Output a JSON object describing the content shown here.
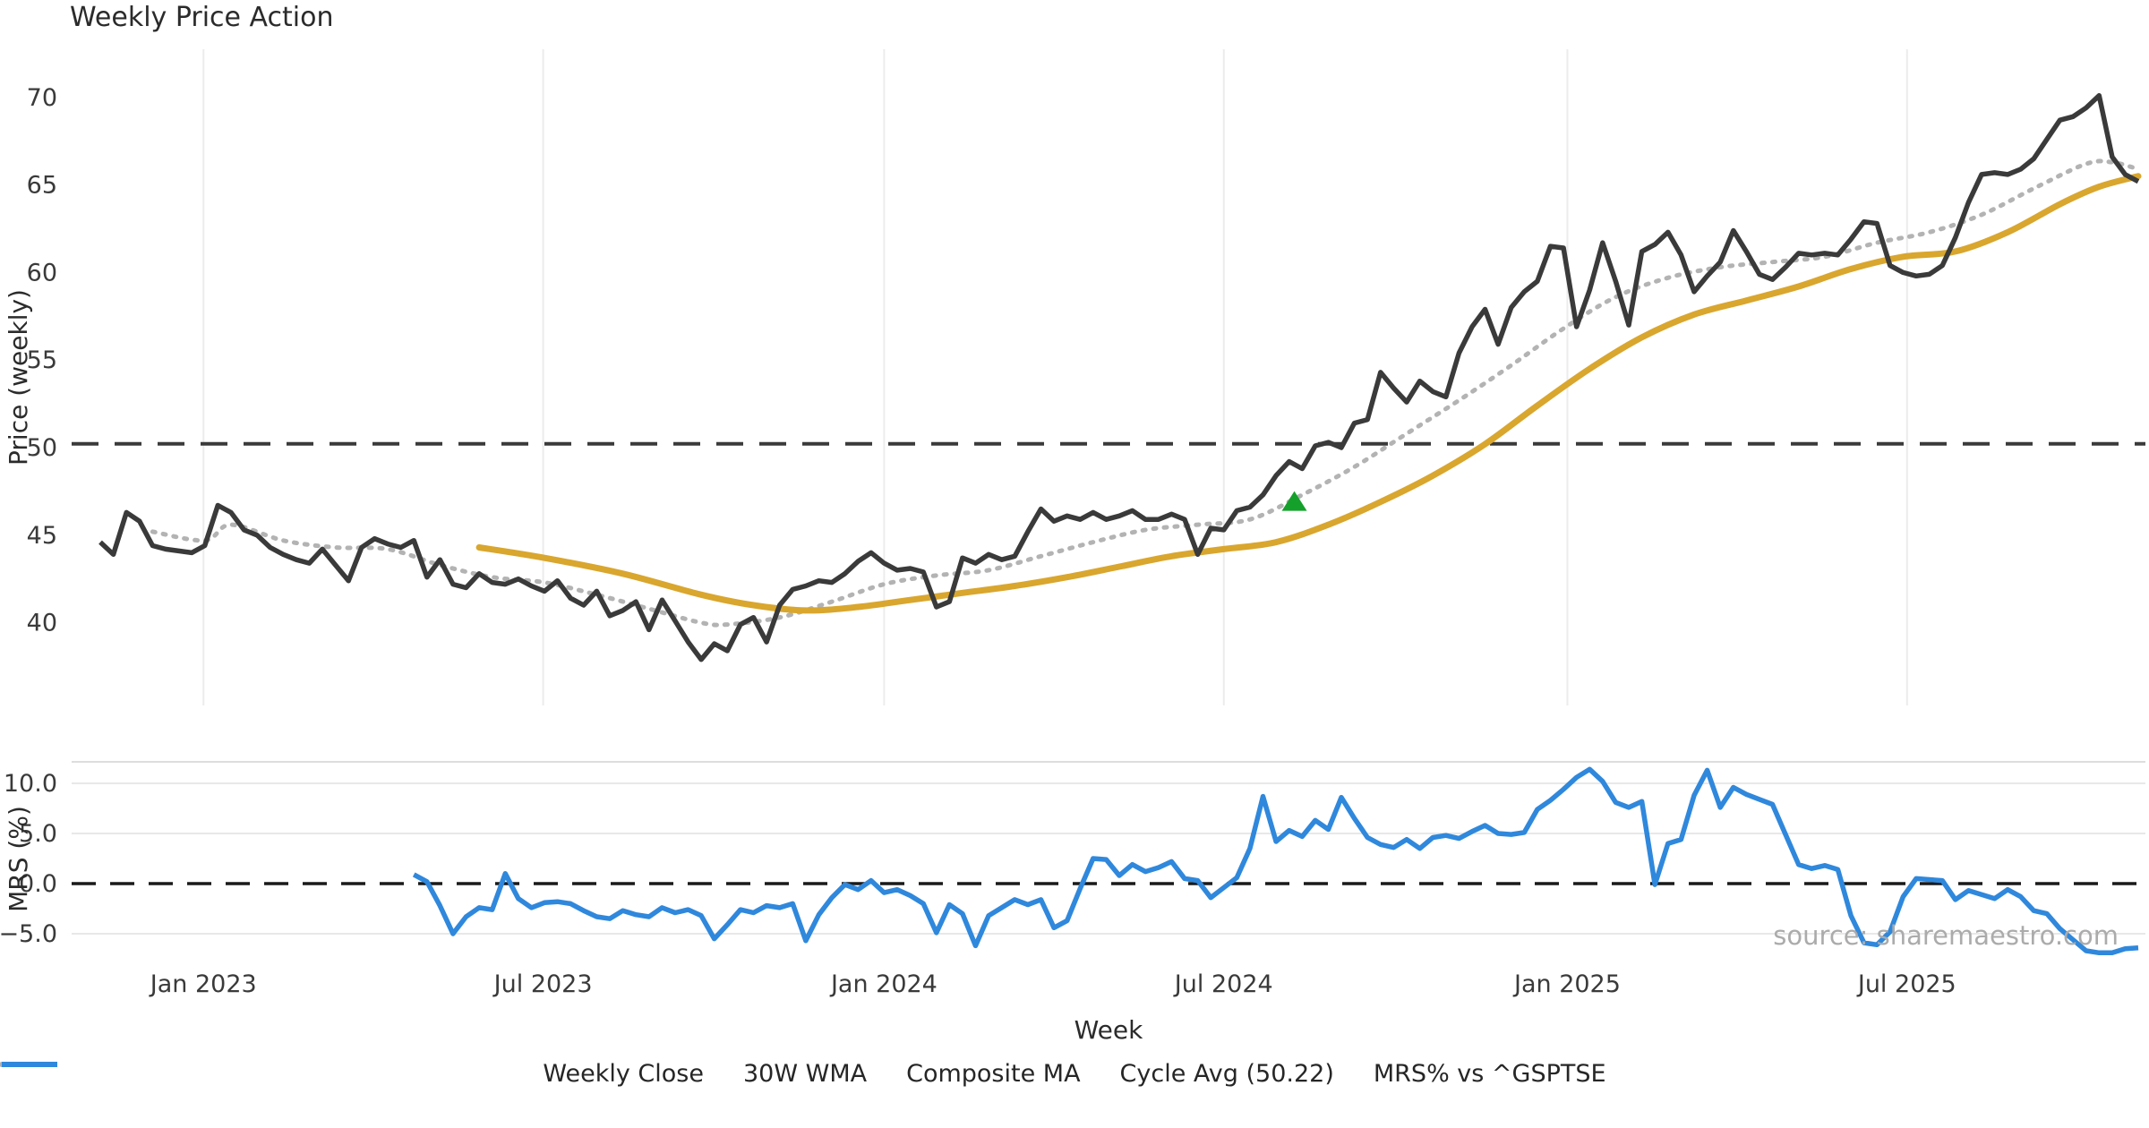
{
  "figure": {
    "title": "Weekly Price Action",
    "source_note": "source: sharemaestro.com",
    "colors": {
      "close": "#3a3a3a",
      "wma": "#d9a62e",
      "composite": "#b3b3b3",
      "cycle_avg": "#3a3a3a",
      "mrs": "#2f88dc",
      "signal_marker": "#15a02c",
      "grid": "#ececec",
      "grid_h": "#e8e8e8",
      "panel_edge": "#dddddd",
      "zero_line": "#1a1a1a",
      "text": "#2b2b2b",
      "tick_text": "#3a3a3a",
      "source_text": "#ababab",
      "background": "#ffffff"
    },
    "legend": [
      {
        "label": "Weekly Close",
        "style": "solid",
        "color": "#3a3a3a"
      },
      {
        "label": "30W WMA",
        "style": "solid",
        "color": "#d9a62e"
      },
      {
        "label": "Composite MA",
        "style": "dotted",
        "color": "#b3b3b3"
      },
      {
        "label": "Cycle Avg (50.22)",
        "style": "dashed",
        "color": "#3a3a3a"
      },
      {
        "label": "MRS% vs ^GSPTSE",
        "style": "solid",
        "color": "#2f88dc"
      }
    ],
    "x_axis": {
      "label": "Week",
      "ticks": [
        {
          "label": "Jan 2023",
          "week": 7.9
        },
        {
          "label": "Jul 2023",
          "week": 33.9
        },
        {
          "label": "Jan 2024",
          "week": 60.0
        },
        {
          "label": "Jul 2024",
          "week": 86.0
        },
        {
          "label": "Jan 2025",
          "week": 112.3
        },
        {
          "label": "Jul 2025",
          "week": 138.3
        }
      ]
    }
  },
  "chart_data": [
    {
      "type": "line",
      "title": "Weekly Price Action",
      "xlabel": "Week",
      "ylabel": "Price (weekly)",
      "ylim": [
        35.3,
        72.7
      ],
      "yticks": [
        70,
        65,
        60,
        55,
        50,
        45,
        40
      ],
      "ytick_labels": [
        "70",
        "65",
        "60",
        "55",
        "50",
        "45",
        "40"
      ],
      "grid": "vertical-only",
      "legend_position": "below-figure",
      "cycle_avg_value": 50.22,
      "series": [
        {
          "name": "Weekly Close",
          "start_week": 0,
          "values": [
            44.6,
            43.9,
            46.3,
            45.8,
            44.4,
            44.2,
            44.1,
            44.0,
            44.4,
            46.7,
            46.3,
            45.3,
            45.0,
            44.3,
            43.9,
            43.6,
            43.4,
            44.2,
            43.3,
            42.4,
            44.3,
            44.8,
            44.5,
            44.3,
            44.7,
            42.6,
            43.6,
            42.2,
            42.0,
            42.8,
            42.3,
            42.2,
            42.5,
            42.1,
            41.8,
            42.4,
            41.4,
            41.0,
            41.8,
            40.4,
            40.7,
            41.2,
            39.6,
            41.3,
            40.1,
            38.9,
            37.9,
            38.8,
            38.4,
            39.9,
            40.3,
            38.9,
            41.0,
            41.9,
            42.1,
            42.4,
            42.3,
            42.8,
            43.5,
            44.0,
            43.4,
            43.0,
            43.1,
            42.9,
            40.9,
            41.2,
            43.7,
            43.4,
            43.9,
            43.6,
            43.8,
            45.2,
            46.5,
            45.8,
            46.1,
            45.9,
            46.3,
            45.9,
            46.1,
            46.4,
            45.9,
            45.9,
            46.2,
            45.9,
            43.9,
            45.4,
            45.3,
            46.4,
            46.6,
            47.3,
            48.4,
            49.2,
            48.8,
            50.1,
            50.3,
            50.0,
            51.4,
            51.6,
            54.3,
            53.4,
            52.6,
            53.8,
            53.2,
            52.9,
            55.4,
            56.9,
            57.9,
            55.9,
            58.0,
            58.9,
            59.5,
            61.5,
            61.4,
            56.9,
            59.0,
            61.7,
            59.5,
            57.0,
            61.2,
            61.6,
            62.3,
            61.0,
            58.9,
            59.8,
            60.6,
            62.4,
            61.2,
            59.9,
            59.6,
            60.3,
            61.1,
            61.0,
            61.1,
            61.0,
            61.9,
            62.9,
            62.8,
            60.4,
            60.0,
            59.8,
            59.9,
            60.4,
            62.0,
            64.0,
            65.6,
            65.7,
            65.6,
            65.9,
            66.5,
            67.6,
            68.7,
            68.9,
            69.4,
            70.1,
            66.6,
            65.6,
            65.2
          ]
        },
        {
          "name": "30W WMA",
          "points": [
            [
              29,
              44.3
            ],
            [
              34,
              43.7
            ],
            [
              40,
              42.8
            ],
            [
              46,
              41.6
            ],
            [
              50,
              41.0
            ],
            [
              54,
              40.7
            ],
            [
              58,
              40.9
            ],
            [
              62,
              41.3
            ],
            [
              66,
              41.7
            ],
            [
              70,
              42.1
            ],
            [
              74,
              42.6
            ],
            [
              78,
              43.2
            ],
            [
              82,
              43.8
            ],
            [
              86,
              44.2
            ],
            [
              90,
              44.6
            ],
            [
              94,
              45.6
            ],
            [
              98,
              46.9
            ],
            [
              102,
              48.4
            ],
            [
              106,
              50.2
            ],
            [
              110,
              52.4
            ],
            [
              114,
              54.5
            ],
            [
              118,
              56.3
            ],
            [
              122,
              57.6
            ],
            [
              126,
              58.4
            ],
            [
              130,
              59.2
            ],
            [
              134,
              60.2
            ],
            [
              138,
              60.9
            ],
            [
              142,
              61.2
            ],
            [
              146,
              62.3
            ],
            [
              150,
              63.9
            ],
            [
              153,
              64.9
            ],
            [
              156,
              65.5
            ]
          ]
        },
        {
          "name": "Composite MA",
          "points": [
            [
              4,
              45.2
            ],
            [
              8,
              44.7
            ],
            [
              10,
              45.6
            ],
            [
              14,
              44.7
            ],
            [
              18,
              44.3
            ],
            [
              22,
              44.2
            ],
            [
              26,
              43.3
            ],
            [
              30,
              42.6
            ],
            [
              34,
              42.3
            ],
            [
              38,
              41.6
            ],
            [
              42,
              40.8
            ],
            [
              46,
              40.0
            ],
            [
              48,
              39.9
            ],
            [
              52,
              40.3
            ],
            [
              56,
              41.2
            ],
            [
              60,
              42.2
            ],
            [
              64,
              42.7
            ],
            [
              68,
              43.0
            ],
            [
              72,
              43.8
            ],
            [
              76,
              44.6
            ],
            [
              80,
              45.3
            ],
            [
              84,
              45.6
            ],
            [
              88,
              45.9
            ],
            [
              92,
              47.3
            ],
            [
              96,
              48.9
            ],
            [
              100,
              50.8
            ],
            [
              104,
              52.7
            ],
            [
              108,
              54.7
            ],
            [
              112,
              56.8
            ],
            [
              116,
              58.6
            ],
            [
              120,
              59.7
            ],
            [
              124,
              60.3
            ],
            [
              128,
              60.6
            ],
            [
              132,
              60.9
            ],
            [
              136,
              61.7
            ],
            [
              140,
              62.3
            ],
            [
              144,
              63.3
            ],
            [
              148,
              64.8
            ],
            [
              152,
              66.2
            ],
            [
              154,
              66.3
            ],
            [
              156,
              65.9
            ]
          ]
        },
        {
          "name": "Cycle Avg (50.22)",
          "type": "hline-dashed",
          "value": 50.22
        }
      ],
      "annotations": [
        {
          "type": "triangle-up-marker",
          "name": "buy-signal",
          "week": 91.4,
          "price": 46.9,
          "color": "#15a02c"
        }
      ]
    },
    {
      "type": "line",
      "xlabel": "Week",
      "ylabel": "MRS (%)",
      "ylim": [
        -7.2,
        12.1
      ],
      "yticks": [
        10.0,
        5.0,
        0.0,
        -5.0
      ],
      "ytick_labels": [
        "10.0",
        "5.0",
        "0.0",
        "−5.0"
      ],
      "grid": "horizontal-only",
      "zero_line": {
        "type": "hline-dashed",
        "value": 0.0
      },
      "series": [
        {
          "name": "MRS% vs ^GSPTSE",
          "start_week": 24,
          "values": [
            0.9,
            0.2,
            -2.2,
            -5.0,
            -3.3,
            -2.4,
            -2.6,
            1.0,
            -1.5,
            -2.4,
            -1.9,
            -1.8,
            -2.0,
            -2.7,
            -3.3,
            -3.5,
            -2.7,
            -3.1,
            -3.3,
            -2.4,
            -2.9,
            -2.6,
            -3.2,
            -5.5,
            -4.1,
            -2.6,
            -2.9,
            -2.2,
            -2.4,
            -2.0,
            -5.7,
            -3.1,
            -1.4,
            -0.1,
            -0.6,
            0.3,
            -0.9,
            -0.6,
            -1.2,
            -2.0,
            -4.9,
            -2.1,
            -3.0,
            -6.2,
            -3.2,
            -2.4,
            -1.6,
            -2.1,
            -1.6,
            -4.4,
            -3.7,
            -0.5,
            2.5,
            2.4,
            0.8,
            1.9,
            1.2,
            1.6,
            2.2,
            0.5,
            0.3,
            -1.4,
            -0.4,
            0.6,
            3.5,
            8.7,
            4.2,
            5.3,
            4.7,
            6.3,
            5.4,
            8.6,
            6.5,
            4.6,
            3.9,
            3.6,
            4.4,
            3.5,
            4.6,
            4.8,
            4.5,
            5.2,
            5.8,
            5.0,
            4.9,
            5.1,
            7.4,
            8.3,
            9.4,
            10.6,
            11.4,
            10.2,
            8.1,
            7.6,
            8.2,
            -0.1,
            4.0,
            4.4,
            8.8,
            11.3,
            7.6,
            9.6,
            8.9,
            8.4,
            7.9,
            4.9,
            1.9,
            1.5,
            1.8,
            1.4,
            -3.2,
            -5.9,
            -6.1,
            -4.8,
            -1.3,
            0.5,
            0.4,
            0.3,
            -1.6,
            -0.7,
            -1.1,
            -1.5,
            -0.6,
            -1.3,
            -2.7,
            -3.0,
            -4.5,
            -5.6,
            -6.7,
            -6.9,
            -6.9,
            -6.5,
            -6.4
          ]
        }
      ]
    }
  ]
}
